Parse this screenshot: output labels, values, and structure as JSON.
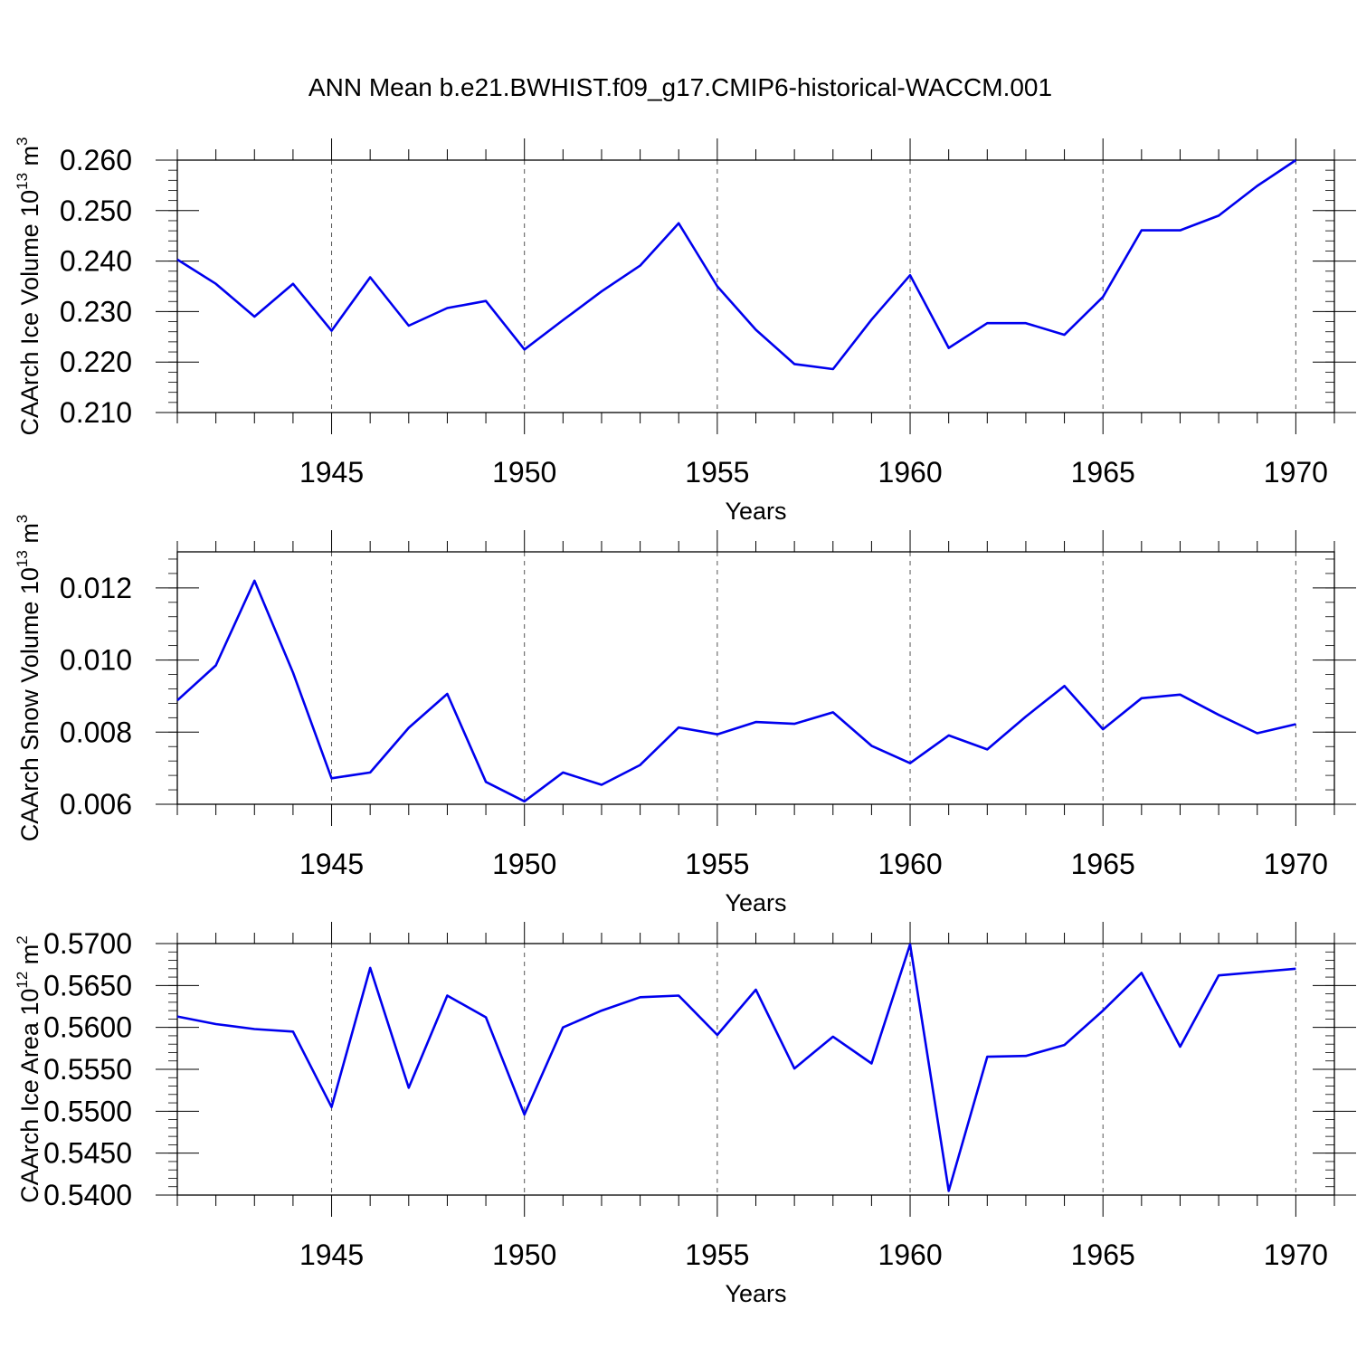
{
  "chart_data": {
    "title": "ANN Mean b.e21.BWHIST.f09_g17.CMIP6-historical-WACCM.001",
    "type": "line",
    "x": [
      1941,
      1942,
      1943,
      1944,
      1945,
      1946,
      1947,
      1948,
      1949,
      1950,
      1951,
      1952,
      1953,
      1954,
      1955,
      1956,
      1957,
      1958,
      1959,
      1960,
      1961,
      1962,
      1963,
      1964,
      1965,
      1966,
      1967,
      1968,
      1969,
      1970
    ],
    "xlim": [
      1941,
      1971
    ],
    "xticks": [
      1945,
      1950,
      1955,
      1960,
      1965,
      1970
    ],
    "xtick_labels": [
      "1945",
      "1950",
      "1955",
      "1960",
      "1965",
      "1970"
    ],
    "line_color": "#0000ee",
    "panels": [
      {
        "xlabel": "Years",
        "ylabel": "CAArch Ice Volume 10",
        "ylabel_exp": "13",
        "ylabel_unit": " m",
        "ylabel_unit_exp": "3",
        "ylim": [
          0.21,
          0.26
        ],
        "yticks": [
          0.21,
          0.22,
          0.23,
          0.24,
          0.25,
          0.26
        ],
        "ytick_labels": [
          "0.210",
          "0.220",
          "0.230",
          "0.240",
          "0.250",
          "0.260"
        ],
        "values": [
          0.2403,
          0.2355,
          0.229,
          0.2355,
          0.2262,
          0.2368,
          0.2272,
          0.2307,
          0.2321,
          0.2225,
          0.2283,
          0.234,
          0.2391,
          0.2475,
          0.235,
          0.2264,
          0.2196,
          0.2186,
          0.2284,
          0.2372,
          0.2228,
          0.2277,
          0.2277,
          0.2254,
          0.2329,
          0.2461,
          0.2461,
          0.249,
          0.2549,
          0.26
        ]
      },
      {
        "xlabel": "Years",
        "ylabel": "CAArch Snow Volume 10",
        "ylabel_exp": "13",
        "ylabel_unit": " m",
        "ylabel_unit_exp": "3",
        "ylim": [
          0.006,
          0.013
        ],
        "yticks": [
          0.006,
          0.008,
          0.01,
          0.012
        ],
        "ytick_labels": [
          "0.006",
          "0.008",
          "0.010",
          "0.012"
        ],
        "values": [
          0.00888,
          0.00985,
          0.0122,
          0.00965,
          0.00672,
          0.00688,
          0.00812,
          0.00906,
          0.00662,
          0.00608,
          0.00688,
          0.00654,
          0.00709,
          0.00813,
          0.00794,
          0.00828,
          0.00823,
          0.00855,
          0.00762,
          0.00714,
          0.00791,
          0.00752,
          0.00843,
          0.00928,
          0.00808,
          0.00894,
          0.00904,
          0.00848,
          0.00797,
          0.00822
        ]
      },
      {
        "xlabel": "Years",
        "ylabel": "CAArch Ice Area 10",
        "ylabel_exp": "12",
        "ylabel_unit": " m",
        "ylabel_unit_exp": "2",
        "ylim": [
          0.54,
          0.57
        ],
        "yticks": [
          0.54,
          0.545,
          0.55,
          0.555,
          0.56,
          0.565,
          0.57
        ],
        "ytick_labels": [
          "0.5400",
          "0.5450",
          "0.5500",
          "0.5550",
          "0.5600",
          "0.5650",
          "0.5700"
        ],
        "values": [
          0.5613,
          0.5604,
          0.5598,
          0.5595,
          0.5505,
          0.5671,
          0.5528,
          0.5638,
          0.5612,
          0.5496,
          0.56,
          0.562,
          0.5636,
          0.5638,
          0.5591,
          0.5645,
          0.5551,
          0.5589,
          0.5557,
          0.5699,
          0.5405,
          0.5565,
          0.5566,
          0.5579,
          0.562,
          0.5665,
          0.5577,
          0.5662,
          0.5666,
          0.567
        ]
      }
    ]
  }
}
